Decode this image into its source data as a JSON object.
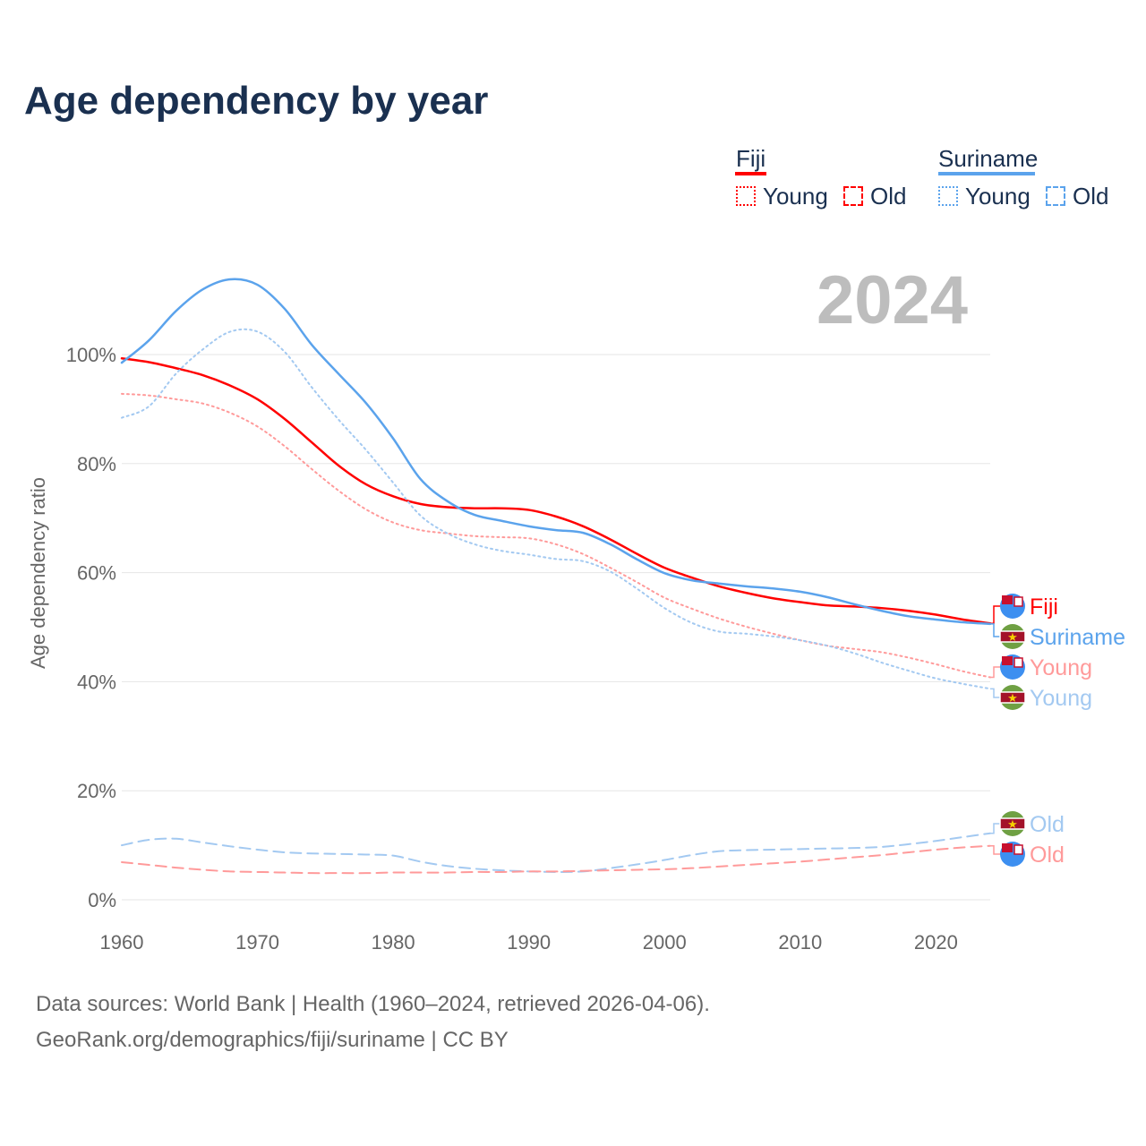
{
  "title": "Age dependency by year",
  "year_label": "2024",
  "legend": {
    "groups": [
      {
        "name": "Fiji",
        "color": "#ff0000",
        "young": "Young",
        "old": "Old"
      },
      {
        "name": "Suriname",
        "color": "#5ba3ec",
        "young": "Young",
        "old": "Old"
      }
    ]
  },
  "source_line1": "Data sources: World Bank | Health (1960–2024, retrieved 2026-04-06).",
  "source_line2": "GeoRank.org/demographics/fiji/suriname | CC BY",
  "chart_data": {
    "type": "line",
    "title": "Age dependency by year",
    "ylabel": "Age dependency ratio",
    "xlabel": "",
    "xlim": [
      1960,
      2024
    ],
    "ylim": [
      0,
      115
    ],
    "x_ticks": [
      "1960",
      "1970",
      "1980",
      "1990",
      "2000",
      "2010",
      "2020"
    ],
    "y_ticks": [
      "0%",
      "20%",
      "40%",
      "60%",
      "80%",
      "100%"
    ],
    "grid": true,
    "legend_position": "top-right",
    "x": [
      1960,
      1962,
      1964,
      1966,
      1968,
      1970,
      1972,
      1974,
      1976,
      1978,
      1980,
      1982,
      1984,
      1986,
      1988,
      1990,
      1992,
      1994,
      1996,
      1998,
      2000,
      2002,
      2004,
      2006,
      2008,
      2010,
      2012,
      2014,
      2016,
      2018,
      2020,
      2022,
      2024
    ],
    "series": [
      {
        "name": "Fiji",
        "end_label": "Fiji",
        "color": "#ff0000",
        "dash": "solid",
        "flag": "fiji",
        "values": [
          99.3,
          98.6,
          97.5,
          96.2,
          94.3,
          91.8,
          88.2,
          83.9,
          79.6,
          76.2,
          74.0,
          72.6,
          72.0,
          71.8,
          71.8,
          71.5,
          70.3,
          68.5,
          66.1,
          63.4,
          60.9,
          59.1,
          57.5,
          56.3,
          55.3,
          54.6,
          54.0,
          53.8,
          53.5,
          53.0,
          52.3,
          51.4,
          50.7
        ]
      },
      {
        "name": "Suriname",
        "end_label": "Suriname",
        "color": "#5ba3ec",
        "dash": "solid",
        "flag": "suriname",
        "values": [
          98.5,
          102.6,
          108,
          112,
          113.8,
          112.8,
          108.4,
          101.8,
          96.4,
          91.1,
          84.6,
          77.2,
          73.1,
          70.6,
          69.5,
          68.5,
          67.8,
          67.3,
          65.2,
          62.4,
          59.9,
          58.6,
          58.0,
          57.5,
          57.1,
          56.5,
          55.5,
          54.2,
          53.0,
          52.0,
          51.4,
          50.9,
          50.6
        ]
      },
      {
        "name": "Fiji Young",
        "end_label": "Young",
        "color": "#ff9a9a",
        "dash": "dotted",
        "flag": "fiji",
        "values": [
          92.8,
          92.5,
          91.8,
          91.0,
          89.3,
          86.8,
          83.2,
          79.0,
          75.0,
          71.6,
          69.2,
          67.8,
          67.2,
          66.7,
          66.5,
          66.3,
          65.2,
          63.4,
          60.9,
          58.2,
          55.4,
          53.4,
          51.6,
          50.1,
          48.8,
          47.6,
          46.6,
          46.0,
          45.4,
          44.4,
          43.2,
          41.9,
          40.8
        ]
      },
      {
        "name": "Suriname Young",
        "end_label": "Young",
        "color": "#a3c9f1",
        "dash": "dotted",
        "flag": "suriname",
        "values": [
          88.4,
          90.5,
          96.5,
          101,
          104.2,
          104.2,
          100.5,
          94,
          88,
          82.5,
          76.5,
          70.5,
          67.2,
          65.2,
          64,
          63.3,
          62.5,
          62.1,
          60.2,
          57,
          53.5,
          50.8,
          49.2,
          48.8,
          48.3,
          47.6,
          46.6,
          45.2,
          43.5,
          42,
          40.6,
          39.6,
          38.7
        ]
      },
      {
        "name": "Suriname Old",
        "end_label": "Old",
        "color": "#a3c9f1",
        "dash": "dashed",
        "flag": "suriname",
        "values": [
          10,
          11,
          11.2,
          10.5,
          9.8,
          9.2,
          8.7,
          8.5,
          8.4,
          8.3,
          8.1,
          7,
          6.2,
          5.7,
          5.4,
          5.2,
          5.1,
          5.2,
          5.8,
          6.5,
          7.3,
          8.2,
          8.9,
          9.1,
          9.2,
          9.3,
          9.4,
          9.5,
          9.7,
          10.2,
          10.8,
          11.5,
          12.2
        ]
      },
      {
        "name": "Fiji Old",
        "end_label": "Old",
        "color": "#ff9a9a",
        "dash": "dashed",
        "flag": "fiji",
        "values": [
          6.9,
          6.4,
          5.9,
          5.5,
          5.2,
          5.1,
          5.0,
          4.9,
          4.9,
          4.9,
          5.0,
          5.0,
          5.0,
          5.1,
          5.1,
          5.2,
          5.2,
          5.3,
          5.4,
          5.5,
          5.6,
          5.8,
          6.1,
          6.4,
          6.7,
          7.0,
          7.4,
          7.8,
          8.2,
          8.7,
          9.2,
          9.6,
          9.9
        ]
      }
    ]
  }
}
